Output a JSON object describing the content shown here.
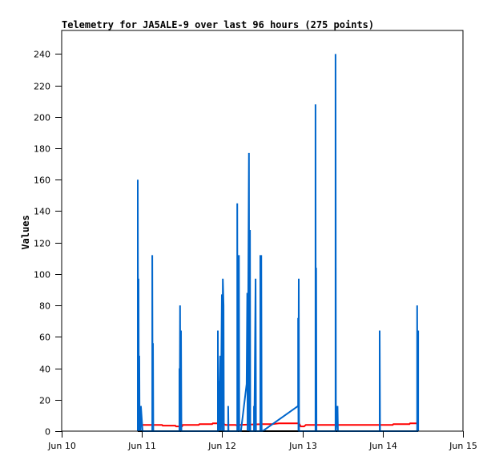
{
  "chart_data": {
    "type": "line",
    "title": "Telemetry for JA5ALE-9 over last 96 hours (275 points)",
    "xlabel": "",
    "ylabel": "Values",
    "x_unit": "hours since Jun 10 00:00",
    "xlim": [
      0,
      120
    ],
    "ylim": [
      0,
      255
    ],
    "yticks": [
      0,
      20,
      40,
      60,
      80,
      100,
      120,
      140,
      160,
      180,
      200,
      220,
      240
    ],
    "xticks": [
      {
        "t": 0,
        "label": "Jun 10"
      },
      {
        "t": 24,
        "label": "Jun 11"
      },
      {
        "t": 48,
        "label": "Jun 12"
      },
      {
        "t": 72,
        "label": "Jun 13"
      },
      {
        "t": 96,
        "label": "Jun 14"
      },
      {
        "t": 120,
        "label": "Jun 15"
      }
    ],
    "grid": false,
    "series": [
      {
        "name": "zero",
        "color": "#000000",
        "points": [
          [
            22.75,
            0
          ],
          [
            106.6,
            0
          ]
        ]
      },
      {
        "name": "red",
        "color": "#ff0000",
        "points": [
          [
            22.75,
            4
          ],
          [
            30,
            4
          ],
          [
            30.2,
            3.5
          ],
          [
            34,
            3.5
          ],
          [
            34.2,
            3
          ],
          [
            36,
            3
          ],
          [
            36.2,
            4
          ],
          [
            41,
            4
          ],
          [
            41.2,
            4.5
          ],
          [
            45,
            4.5
          ],
          [
            45.2,
            5
          ],
          [
            48,
            5
          ],
          [
            49,
            4
          ],
          [
            52,
            4
          ],
          [
            52.5,
            3.5
          ],
          [
            53,
            4
          ],
          [
            60,
            4.5
          ],
          [
            63,
            4.5
          ],
          [
            65,
            5
          ],
          [
            71,
            5
          ],
          [
            71.5,
            3
          ],
          [
            72.5,
            3
          ],
          [
            73,
            4
          ],
          [
            80,
            4
          ],
          [
            90,
            4
          ],
          [
            99,
            4
          ],
          [
            99.2,
            4.5
          ],
          [
            104,
            4.5
          ],
          [
            104.2,
            5
          ],
          [
            106.6,
            5
          ]
        ]
      },
      {
        "name": "blue",
        "color": "#0066cc",
        "points": [
          [
            22.75,
            0
          ],
          [
            22.75,
            160
          ],
          [
            22.9,
            0
          ],
          [
            23.0,
            97
          ],
          [
            23.1,
            0
          ],
          [
            23.2,
            48
          ],
          [
            23.3,
            0
          ],
          [
            23.5,
            8
          ],
          [
            23.6,
            0
          ],
          [
            23.7,
            16
          ],
          [
            24.2,
            0
          ],
          [
            27.1,
            0
          ],
          [
            27.1,
            112
          ],
          [
            27.2,
            0
          ],
          [
            27.3,
            56
          ],
          [
            27.4,
            0
          ],
          [
            35.2,
            0
          ],
          [
            35.2,
            40
          ],
          [
            35.3,
            0
          ],
          [
            35.4,
            80
          ],
          [
            35.5,
            0
          ],
          [
            35.7,
            64
          ],
          [
            35.8,
            0
          ],
          [
            46.7,
            0
          ],
          [
            46.7,
            64
          ],
          [
            46.8,
            0
          ],
          [
            46.9,
            32
          ],
          [
            47.0,
            0
          ],
          [
            47.4,
            48
          ],
          [
            47.5,
            0
          ],
          [
            47.7,
            32
          ],
          [
            47.9,
            87
          ],
          [
            48.0,
            0
          ],
          [
            48.2,
            97
          ],
          [
            48.4,
            80
          ],
          [
            48.5,
            0
          ],
          [
            49.8,
            0
          ],
          [
            49.8,
            16
          ],
          [
            49.9,
            0
          ],
          [
            52.5,
            0
          ],
          [
            52.5,
            145
          ],
          [
            52.6,
            0
          ],
          [
            52.7,
            72
          ],
          [
            52.8,
            0
          ],
          [
            53.0,
            112
          ],
          [
            53.1,
            0
          ],
          [
            53.6,
            0
          ],
          [
            55.3,
            30
          ],
          [
            55.5,
            88
          ],
          [
            55.6,
            0
          ],
          [
            56.0,
            177
          ],
          [
            56.1,
            0
          ],
          [
            56.3,
            128
          ],
          [
            56.4,
            0
          ],
          [
            57.5,
            0
          ],
          [
            57.5,
            16
          ],
          [
            57.6,
            0
          ],
          [
            58.0,
            97
          ],
          [
            58.1,
            0
          ],
          [
            59.4,
            0
          ],
          [
            59.4,
            112
          ],
          [
            59.5,
            0
          ],
          [
            59.7,
            112
          ],
          [
            59.8,
            0
          ],
          [
            60.1,
            0
          ],
          [
            70.7,
            16
          ],
          [
            70.7,
            72
          ],
          [
            70.8,
            0
          ],
          [
            70.9,
            97
          ],
          [
            71.0,
            0
          ],
          [
            75.9,
            0
          ],
          [
            75.9,
            208
          ],
          [
            76.0,
            0
          ],
          [
            76.1,
            104
          ],
          [
            76.2,
            0
          ],
          [
            81.9,
            0
          ],
          [
            81.9,
            240
          ],
          [
            82.0,
            0
          ],
          [
            82.5,
            16
          ],
          [
            82.6,
            0
          ],
          [
            95.1,
            0
          ],
          [
            95.1,
            64
          ],
          [
            95.2,
            0
          ],
          [
            106.3,
            0
          ],
          [
            106.3,
            80
          ],
          [
            106.4,
            0
          ],
          [
            106.6,
            64
          ],
          [
            106.6,
            0
          ]
        ]
      }
    ]
  }
}
